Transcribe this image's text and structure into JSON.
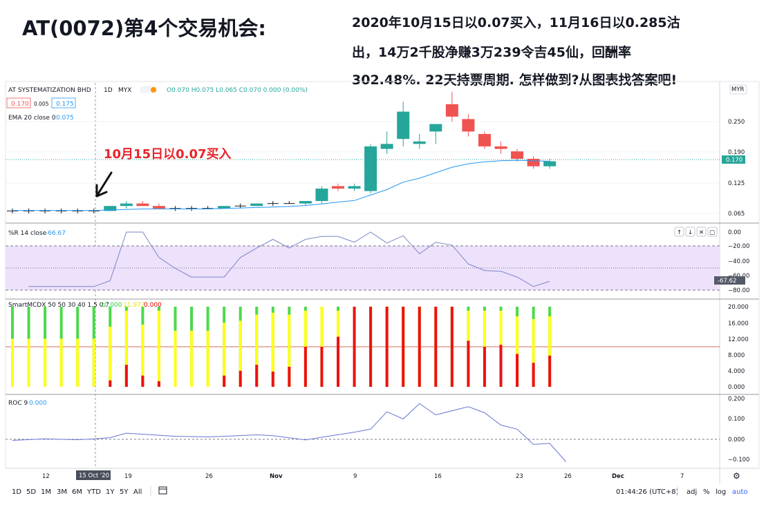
{
  "title": "AT(0072)第4个交易机会:",
  "description": [
    "2020年10月15日以0.07买入，11月16日以0.285沽",
    "出，14万2千股净赚3万239令吉45仙，回酬率",
    "302.48%. 22天持票周期. 怎样做到?从图表找答案吧!"
  ],
  "annotation": "10月15日以0.07买入",
  "colors": {
    "up": "#26a69a",
    "down": "#ef5350",
    "ema": "#2196f3",
    "wr": "#7b86c4",
    "roc": "#6674d4",
    "wr_band": "#ede1fb"
  },
  "chart_header": {
    "symbol": "AT SYSTEMATIZATION BHD",
    "interval": "1D",
    "exchange": "MYX",
    "ohlc": "O0.070 H0.075 L0.065 C0.070 0.000 (0.00%)",
    "bid": "0.170",
    "spread": "0.005",
    "ask": "0.175",
    "ema_label": "EMA 20 close 0",
    "ema_value": "0.075",
    "currency": "MYR"
  },
  "panes": {
    "wr": {
      "label": "%R 14 close",
      "value": "-66.67",
      "last": "-67.62"
    },
    "smart": {
      "label": "SmartMCDX 50 50 30 40 1.5 0.7",
      "v1": "20.000",
      "v2": "11.977",
      "v3": "0.000"
    },
    "roc": {
      "label": "ROC 9",
      "value": "0.000"
    }
  },
  "price_axis": {
    "ticks": [
      "0.250",
      "0.190",
      "0.125",
      "0.065"
    ],
    "last_price": "0.170"
  },
  "x_axis": {
    "ticks": [
      "12",
      "15 Oct '20",
      "19",
      "26",
      "Nov",
      "9",
      "16",
      "23",
      "26",
      "Dec",
      "7"
    ]
  },
  "bottom_toolbar": {
    "ranges": [
      "1D",
      "5D",
      "1M",
      "3M",
      "6M",
      "YTD",
      "1Y",
      "5Y",
      "All"
    ],
    "time": "01:44:26 (UTC+8)",
    "options": [
      "adj",
      "%",
      "log",
      "auto"
    ]
  },
  "chart_data": [
    {
      "type": "candlestick",
      "title": "AT SYSTEMATIZATION BHD · 1D · MYX",
      "ylim": [
        0.035,
        0.325
      ],
      "x": [
        "Oct 8",
        "Oct 9",
        "Oct 12",
        "Oct 13",
        "Oct 14",
        "Oct 15",
        "Oct 16",
        "Oct 19",
        "Oct 20",
        "Oct 21",
        "Oct 22",
        "Oct 23",
        "Oct 26",
        "Oct 27",
        "Oct 28",
        "Oct 29",
        "Oct 30",
        "Nov 2",
        "Nov 3",
        "Nov 4",
        "Nov 5",
        "Nov 6",
        "Nov 9",
        "Nov 10",
        "Nov 11",
        "Nov 12",
        "Nov 13",
        "Nov 16",
        "Nov 17",
        "Nov 18",
        "Nov 19",
        "Nov 20",
        "Nov 23",
        "Nov 24"
      ],
      "open": [
        0.07,
        0.07,
        0.07,
        0.07,
        0.07,
        0.07,
        0.07,
        0.08,
        0.085,
        0.08,
        0.075,
        0.075,
        0.075,
        0.075,
        0.08,
        0.08,
        0.085,
        0.085,
        0.085,
        0.09,
        0.12,
        0.115,
        0.11,
        0.195,
        0.215,
        0.205,
        0.23,
        0.285,
        0.255,
        0.225,
        0.2,
        0.19,
        0.175,
        0.16
      ],
      "high": [
        0.075,
        0.075,
        0.075,
        0.075,
        0.075,
        0.075,
        0.08,
        0.09,
        0.09,
        0.085,
        0.08,
        0.08,
        0.08,
        0.08,
        0.085,
        0.085,
        0.09,
        0.09,
        0.09,
        0.12,
        0.125,
        0.125,
        0.205,
        0.23,
        0.29,
        0.225,
        0.245,
        0.31,
        0.265,
        0.23,
        0.21,
        0.195,
        0.18,
        0.175
      ],
      "low": [
        0.065,
        0.065,
        0.065,
        0.065,
        0.065,
        0.065,
        0.07,
        0.075,
        0.08,
        0.075,
        0.07,
        0.07,
        0.075,
        0.075,
        0.075,
        0.08,
        0.08,
        0.085,
        0.08,
        0.085,
        0.11,
        0.11,
        0.105,
        0.185,
        0.2,
        0.195,
        0.205,
        0.25,
        0.22,
        0.195,
        0.185,
        0.17,
        0.155,
        0.155
      ],
      "close": [
        0.07,
        0.07,
        0.07,
        0.07,
        0.07,
        0.07,
        0.08,
        0.085,
        0.08,
        0.075,
        0.075,
        0.075,
        0.075,
        0.08,
        0.08,
        0.085,
        0.085,
        0.085,
        0.09,
        0.115,
        0.115,
        0.12,
        0.2,
        0.205,
        0.27,
        0.21,
        0.245,
        0.26,
        0.23,
        0.2,
        0.195,
        0.175,
        0.16,
        0.17
      ],
      "ema20": [
        0.071,
        0.071,
        0.071,
        0.071,
        0.071,
        0.071,
        0.072,
        0.073,
        0.074,
        0.074,
        0.074,
        0.074,
        0.074,
        0.075,
        0.076,
        0.077,
        0.078,
        0.079,
        0.081,
        0.084,
        0.088,
        0.091,
        0.102,
        0.113,
        0.128,
        0.136,
        0.147,
        0.158,
        0.165,
        0.169,
        0.171,
        0.172,
        0.171,
        0.17
      ]
    },
    {
      "type": "line",
      "title": "%R 14 close",
      "ylim": [
        -85,
        2
      ],
      "x": [
        "Oct 9",
        "Oct 12",
        "Oct 13",
        "Oct 14",
        "Oct 15",
        "Oct 16",
        "Oct 19",
        "Oct 20",
        "Oct 21",
        "Oct 22",
        "Oct 23",
        "Oct 26",
        "Oct 27",
        "Oct 28",
        "Oct 29",
        "Oct 30",
        "Nov 2",
        "Nov 3",
        "Nov 4",
        "Nov 5",
        "Nov 6",
        "Nov 9",
        "Nov 10",
        "Nov 11",
        "Nov 12",
        "Nov 13",
        "Nov 16",
        "Nov 17",
        "Nov 18",
        "Nov 19",
        "Nov 20",
        "Nov 23",
        "Nov 24"
      ],
      "values": [
        -75,
        -75,
        -75,
        -75,
        -75,
        -67,
        0,
        0,
        -35,
        -50,
        -62,
        -62,
        -62,
        -35,
        -22,
        -10,
        -22,
        -10,
        -6,
        -6,
        -14,
        0,
        -15,
        -5,
        -30,
        -14,
        -18,
        -44,
        -53,
        -54,
        -62,
        -75,
        -68
      ]
    },
    {
      "type": "bar",
      "title": "SmartMCDX 50 50 30 40 1.5 0.7",
      "ylim": [
        0,
        20
      ],
      "x": [
        "Oct 8",
        "Oct 9",
        "Oct 12",
        "Oct 13",
        "Oct 14",
        "Oct 15",
        "Oct 16",
        "Oct 19",
        "Oct 20",
        "Oct 21",
        "Oct 22",
        "Oct 23",
        "Oct 26",
        "Oct 27",
        "Oct 28",
        "Oct 29",
        "Oct 30",
        "Nov 2",
        "Nov 3",
        "Nov 4",
        "Nov 5",
        "Nov 6",
        "Nov 9",
        "Nov 10",
        "Nov 11",
        "Nov 12",
        "Nov 13",
        "Nov 16",
        "Nov 17",
        "Nov 18",
        "Nov 19",
        "Nov 20",
        "Nov 23",
        "Nov 24"
      ],
      "series": [
        {
          "name": "red",
          "values": [
            0,
            0,
            0,
            0,
            0,
            0,
            1.6,
            5.5,
            2.8,
            1.4,
            0,
            0,
            0,
            2.8,
            4.0,
            5.5,
            3.8,
            5.0,
            10,
            10,
            12.5,
            20,
            20,
            20,
            20,
            20,
            20,
            20,
            11.5,
            10,
            10.5,
            8.2,
            6.0,
            7.8
          ]
        },
        {
          "name": "yellow",
          "values": [
            12,
            12,
            12,
            12,
            12,
            12,
            15,
            19,
            15.5,
            19,
            14,
            14,
            14,
            16,
            16.5,
            18,
            18.5,
            18,
            19,
            20,
            19,
            20,
            20,
            20,
            20,
            20,
            20,
            20,
            19,
            19,
            19,
            17.6,
            16.9,
            17.6
          ]
        },
        {
          "name": "green",
          "values": [
            20,
            20,
            20,
            20,
            20,
            20,
            20,
            20,
            20,
            20,
            20,
            20,
            20,
            20,
            20,
            20,
            20,
            20,
            20,
            20,
            20,
            20,
            20,
            20,
            20,
            20,
            20,
            20,
            20,
            20,
            20,
            20,
            20,
            20
          ]
        }
      ]
    },
    {
      "type": "line",
      "title": "ROC 9",
      "ylim": [
        -0.15,
        0.21
      ],
      "x": [
        "Oct 8",
        "Oct 12",
        "Oct 14",
        "Oct 15",
        "Oct 16",
        "Oct 19",
        "Oct 21",
        "Oct 22",
        "Oct 26",
        "Oct 27",
        "Oct 29",
        "Oct 30",
        "Nov 3",
        "Nov 4",
        "Nov 6",
        "Nov 9",
        "Nov 10",
        "Nov 11",
        "Nov 12",
        "Nov 13",
        "Nov 17",
        "Nov 18",
        "Nov 19",
        "Nov 20",
        "Nov 23",
        "Nov 24",
        "Nov 25"
      ],
      "values": [
        -0.005,
        0.002,
        -0.002,
        0.002,
        0.008,
        0.03,
        0.02,
        0.015,
        0.012,
        0.015,
        0.022,
        0.018,
        -0.003,
        0.01,
        0.035,
        0.05,
        0.135,
        0.1,
        0.175,
        0.12,
        0.16,
        0.13,
        0.07,
        0.05,
        -0.025,
        -0.02,
        -0.11
      ]
    }
  ]
}
